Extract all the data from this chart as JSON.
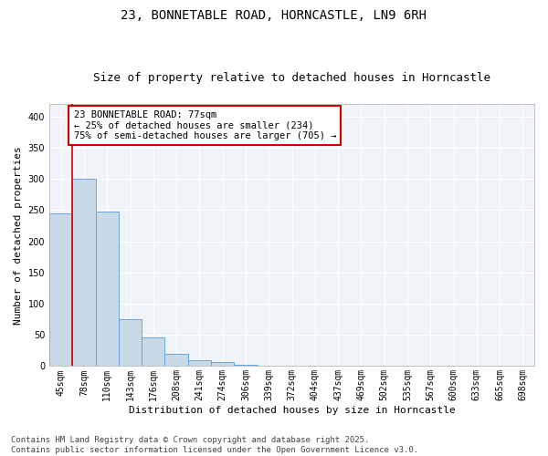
{
  "title_line1": "23, BONNETABLE ROAD, HORNCASTLE, LN9 6RH",
  "title_line2": "Size of property relative to detached houses in Horncastle",
  "xlabel": "Distribution of detached houses by size in Horncastle",
  "ylabel": "Number of detached properties",
  "categories": [
    "45sqm",
    "78sqm",
    "110sqm",
    "143sqm",
    "176sqm",
    "208sqm",
    "241sqm",
    "274sqm",
    "306sqm",
    "339sqm",
    "372sqm",
    "404sqm",
    "437sqm",
    "469sqm",
    "502sqm",
    "535sqm",
    "567sqm",
    "600sqm",
    "633sqm",
    "665sqm",
    "698sqm"
  ],
  "values": [
    245,
    300,
    248,
    75,
    46,
    20,
    10,
    7,
    2,
    0,
    0,
    0,
    0,
    0,
    0,
    0,
    0,
    0,
    0,
    1,
    0
  ],
  "bar_color": "#c9d9e8",
  "bar_edge_color": "#5b9bd5",
  "grid_color": "#c8d8e8",
  "annotation_text": "23 BONNETABLE ROAD: 77sqm\n← 25% of detached houses are smaller (234)\n75% of semi-detached houses are larger (705) →",
  "annotation_box_color": "#cc0000",
  "vline_x": 1.5,
  "vline_color": "#cc0000",
  "ylim": [
    0,
    420
  ],
  "yticks": [
    0,
    50,
    100,
    150,
    200,
    250,
    300,
    350,
    400
  ],
  "footer_line1": "Contains HM Land Registry data © Crown copyright and database right 2025.",
  "footer_line2": "Contains public sector information licensed under the Open Government Licence v3.0.",
  "title_fontsize": 10,
  "subtitle_fontsize": 9,
  "axis_label_fontsize": 8,
  "tick_fontsize": 7,
  "annotation_fontsize": 7.5,
  "footer_fontsize": 6.5,
  "bg_color": "#f0f4f8"
}
